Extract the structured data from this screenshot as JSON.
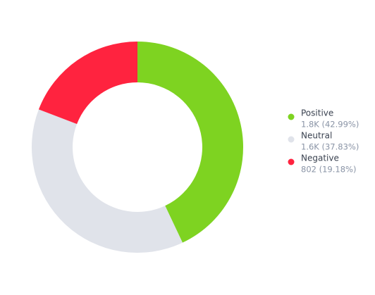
{
  "chart_data": {
    "type": "pie",
    "donut": true,
    "categories": [
      "Positive",
      "Neutral",
      "Negative"
    ],
    "values": [
      42.99,
      37.83,
      19.18
    ],
    "value_labels": [
      "1.8K (42.99%)",
      "1.6K (37.83%)",
      "802 (19.18%)"
    ],
    "colors": [
      "#7ed321",
      "#e0e3ea",
      "#ff233f"
    ]
  }
}
